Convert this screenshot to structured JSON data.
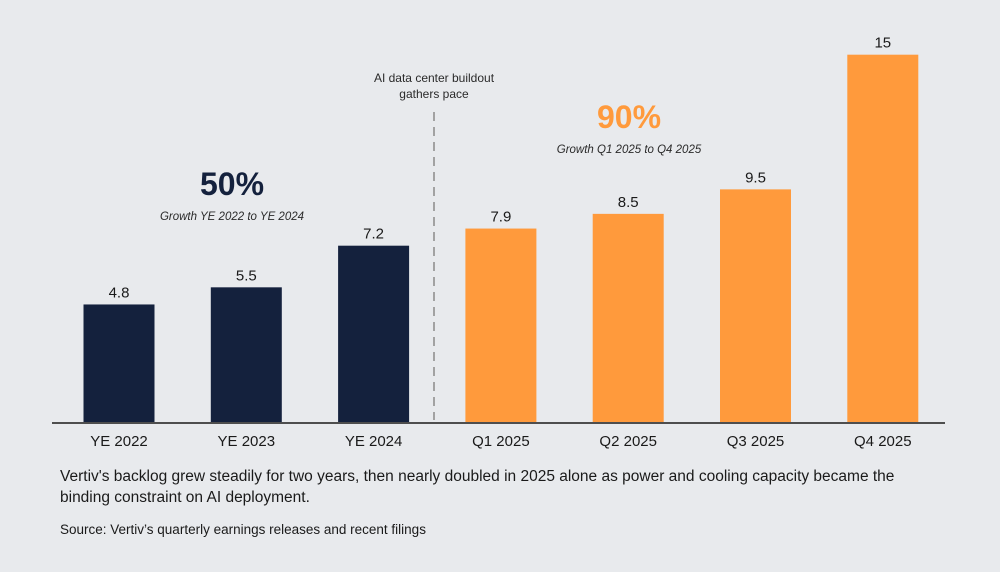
{
  "chart_data": {
    "type": "bar",
    "categories": [
      "YE 2022",
      "YE 2023",
      "YE 2024",
      "Q1 2025",
      "Q2 2025",
      "Q3 2025",
      "Q4 2025"
    ],
    "values": [
      4.8,
      5.5,
      7.2,
      7.9,
      8.5,
      9.5,
      15
    ],
    "value_labels": [
      "4.8",
      "5.5",
      "7.2",
      "7.9",
      "8.5",
      "9.5",
      "15"
    ],
    "bar_colors": [
      "#14213d",
      "#14213d",
      "#14213d",
      "#ff9a3c",
      "#ff9a3c",
      "#ff9a3c",
      "#ff9a3c"
    ],
    "ylim": [
      0,
      15.6
    ],
    "grid": false,
    "annotations": {
      "group1_pct": "50%",
      "group1_sub": "Growth YE 2022 to YE 2024",
      "group2_pct": "90%",
      "group2_sub": "Growth Q1 2025 to Q4 2025",
      "divider_line1": "AI data center buildout",
      "divider_line2": "gathers pace"
    },
    "colors": {
      "navy": "#14213d",
      "orange": "#ff9a3c"
    }
  },
  "caption": "Vertiv's backlog grew steadily for two years, then nearly doubled in 2025 alone as power and cooling capacity became the binding constraint on AI deployment.",
  "source": "Source: Vertiv’s quarterly earnings releases and recent filings"
}
